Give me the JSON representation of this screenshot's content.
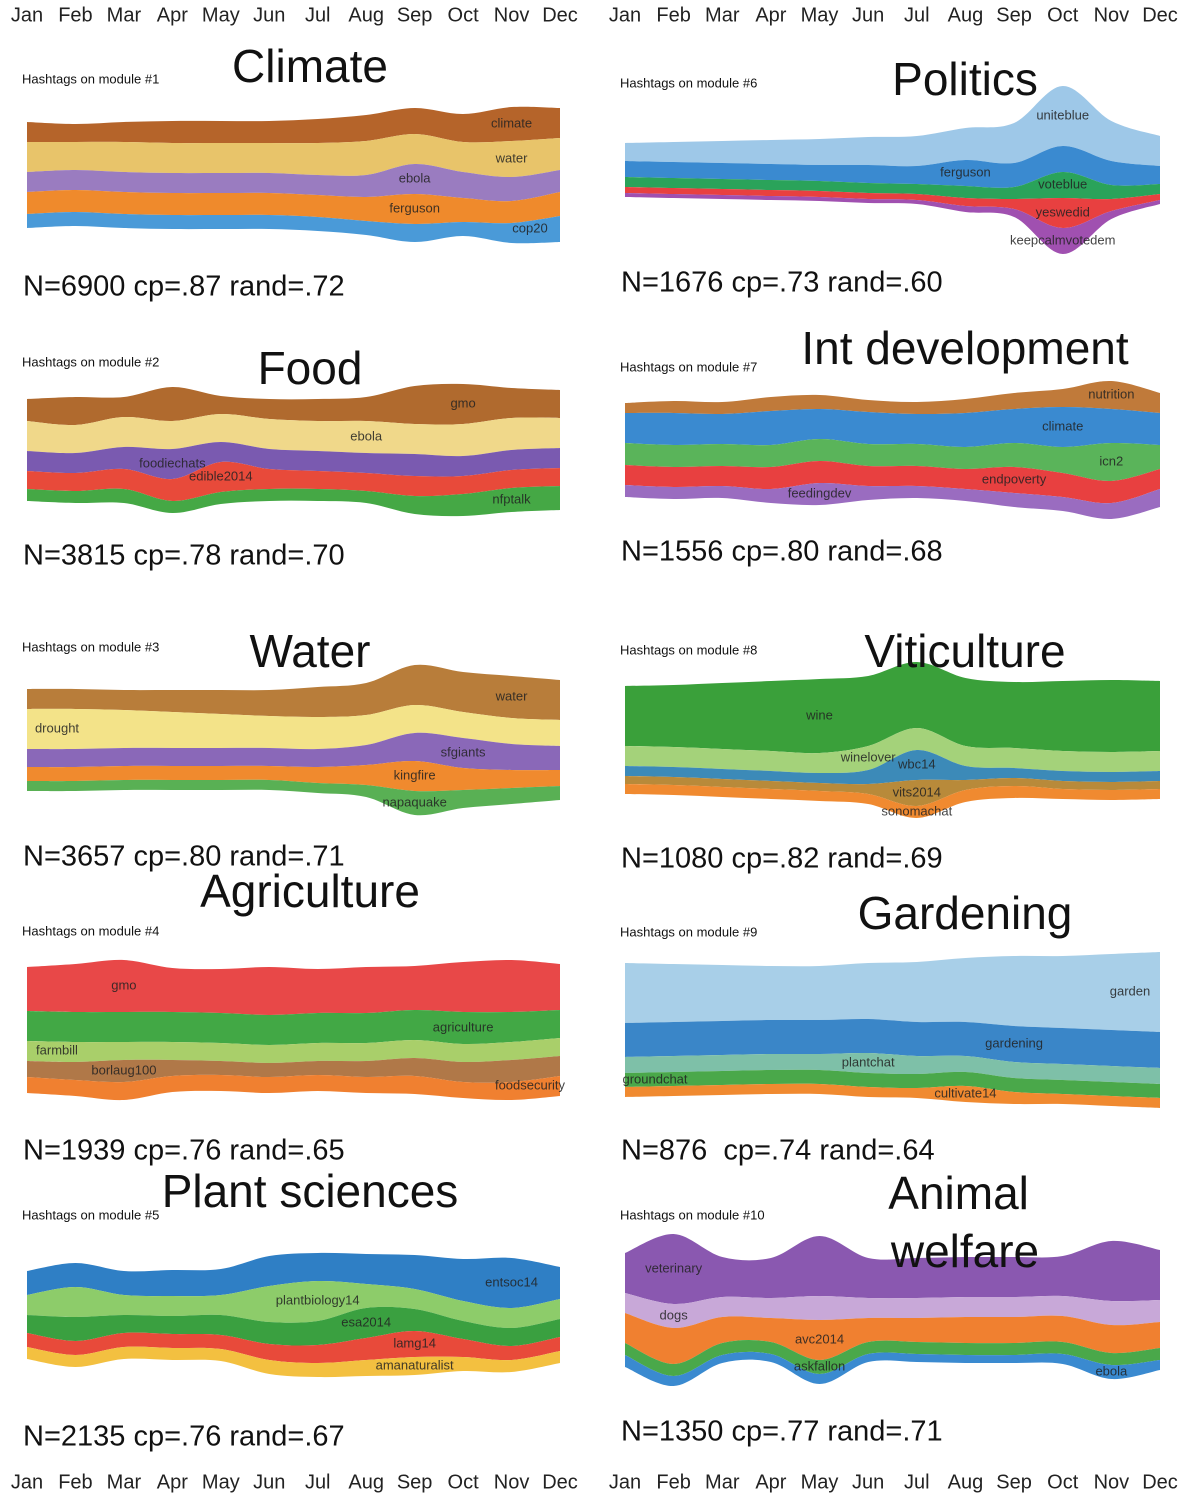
{
  "chart_data": [
    {
      "type": "streamgraph",
      "title": "Climate",
      "subtitle": "Hashtags on module #1",
      "annotation": "N=6900 cp=.87 rand=.72",
      "categories": [
        "Jan",
        "Feb",
        "Mar",
        "Apr",
        "May",
        "Jun",
        "Jul",
        "Aug",
        "Sep",
        "Oct",
        "Nov",
        "Dec"
      ],
      "series": [
        {
          "name": "climate",
          "color": "#b5642a",
          "values": [
            20,
            18,
            20,
            22,
            22,
            22,
            24,
            26,
            26,
            28,
            34,
            30
          ]
        },
        {
          "name": "water",
          "color": "#e8c46a",
          "values": [
            30,
            28,
            30,
            30,
            30,
            30,
            32,
            34,
            30,
            30,
            36,
            32
          ]
        },
        {
          "name": "ebola",
          "color": "#9a7cc0",
          "values": [
            20,
            20,
            20,
            20,
            20,
            20,
            20,
            22,
            30,
            26,
            24,
            22
          ]
        },
        {
          "name": "ferguson",
          "color": "#ef8a2c",
          "values": [
            22,
            22,
            22,
            22,
            22,
            22,
            22,
            24,
            30,
            24,
            22,
            24
          ]
        },
        {
          "name": "cop20",
          "color": "#4a9ad8",
          "values": [
            14,
            14,
            14,
            14,
            14,
            14,
            14,
            14,
            18,
            14,
            20,
            26
          ]
        }
      ]
    },
    {
      "type": "streamgraph",
      "title": "Food",
      "subtitle": "Hashtags on module #2",
      "annotation": "N=3815 cp=.78 rand=.70",
      "series": [
        {
          "name": "gmo",
          "color": "#b06a2e",
          "values": [
            22,
            28,
            20,
            34,
            18,
            20,
            22,
            24,
            38,
            40,
            30,
            28
          ]
        },
        {
          "name": "ebola",
          "color": "#f0d88a",
          "values": [
            30,
            28,
            30,
            28,
            28,
            30,
            30,
            32,
            30,
            32,
            32,
            30
          ]
        },
        {
          "name": "foodiechats",
          "color": "#7a5ab0",
          "values": [
            20,
            20,
            22,
            30,
            20,
            20,
            20,
            20,
            22,
            20,
            20,
            20
          ]
        },
        {
          "name": "edible2014",
          "color": "#e84a3a",
          "values": [
            18,
            18,
            20,
            22,
            30,
            20,
            18,
            18,
            20,
            18,
            18,
            18
          ]
        },
        {
          "name": "nfptalk",
          "color": "#45a845",
          "values": [
            12,
            12,
            14,
            12,
            12,
            12,
            12,
            12,
            18,
            22,
            24,
            24
          ]
        }
      ]
    },
    {
      "type": "streamgraph",
      "title": "Water",
      "subtitle": "Hashtags on module #3",
      "annotation": "N=3657 cp=.80 rand=.71",
      "series": [
        {
          "name": "water",
          "color": "#b87d3a",
          "values": [
            20,
            20,
            20,
            22,
            24,
            26,
            30,
            32,
            40,
            40,
            42,
            40
          ]
        },
        {
          "name": "drought",
          "color": "#f3e389",
          "values": [
            40,
            40,
            38,
            36,
            34,
            32,
            32,
            30,
            28,
            26,
            26,
            26
          ]
        },
        {
          "name": "sfgiants",
          "color": "#8a68b8",
          "values": [
            18,
            18,
            18,
            18,
            18,
            18,
            18,
            20,
            28,
            30,
            26,
            24
          ]
        },
        {
          "name": "kingfire",
          "color": "#f08a2e",
          "values": [
            14,
            14,
            14,
            14,
            14,
            14,
            16,
            20,
            30,
            22,
            18,
            16
          ]
        },
        {
          "name": "napaquake",
          "color": "#59b054",
          "values": [
            10,
            10,
            10,
            10,
            10,
            10,
            10,
            12,
            24,
            18,
            16,
            14
          ]
        }
      ]
    },
    {
      "type": "streamgraph",
      "title": "Agriculture",
      "subtitle": "Hashtags on module #4",
      "annotation": "N=1939 cp=.76 rand=.65",
      "series": [
        {
          "name": "gmo",
          "color": "#e84848",
          "values": [
            44,
            48,
            52,
            44,
            44,
            48,
            44,
            46,
            44,
            50,
            52,
            46
          ]
        },
        {
          "name": "agriculture",
          "color": "#42a845",
          "values": [
            30,
            30,
            30,
            30,
            30,
            30,
            30,
            30,
            30,
            32,
            30,
            28
          ]
        },
        {
          "name": "farmbill",
          "color": "#a9cf6a",
          "values": [
            20,
            20,
            18,
            18,
            18,
            18,
            18,
            18,
            18,
            18,
            18,
            18
          ]
        },
        {
          "name": "borlaug100",
          "color": "#b07848",
          "values": [
            16,
            18,
            22,
            16,
            14,
            14,
            14,
            16,
            18,
            20,
            22,
            20
          ]
        },
        {
          "name": "foodsecurity",
          "color": "#f08030",
          "values": [
            16,
            16,
            18,
            16,
            16,
            16,
            16,
            16,
            18,
            16,
            18,
            20
          ]
        }
      ]
    },
    {
      "type": "streamgraph",
      "title": "Plant sciences",
      "subtitle": "Hashtags on module #5",
      "annotation": "N=2135 cp=.76 rand=.67",
      "categories": [
        "Jan",
        "Feb",
        "Mar",
        "Apr",
        "May",
        "Jun",
        "Jul",
        "Aug",
        "Sep",
        "Oct",
        "Nov",
        "Dec"
      ],
      "series": [
        {
          "name": "entsoc14",
          "color": "#2f7fc5",
          "values": [
            24,
            24,
            24,
            26,
            26,
            30,
            28,
            30,
            34,
            42,
            50,
            32
          ]
        },
        {
          "name": "plantbiology14",
          "color": "#8dcc6a",
          "values": [
            20,
            30,
            20,
            20,
            20,
            36,
            40,
            24,
            20,
            20,
            20,
            20
          ]
        },
        {
          "name": "esa2014",
          "color": "#3aa040",
          "values": [
            18,
            24,
            18,
            18,
            20,
            22,
            24,
            30,
            22,
            18,
            18,
            18
          ]
        },
        {
          "name": "lamg14",
          "color": "#e84a3a",
          "values": [
            14,
            14,
            14,
            14,
            14,
            16,
            18,
            22,
            26,
            18,
            14,
            14
          ]
        },
        {
          "name": "amanaturalist",
          "color": "#f3c040",
          "values": [
            12,
            12,
            12,
            12,
            12,
            14,
            14,
            16,
            18,
            14,
            12,
            12
          ]
        }
      ]
    },
    {
      "type": "streamgraph",
      "title": "Politics",
      "subtitle": "Hashtags on module #6",
      "annotation": "N=1676 cp=.73 rand=.60",
      "categories": [
        "Jan",
        "Feb",
        "Mar",
        "Apr",
        "May",
        "Jun",
        "Jul",
        "Aug",
        "Sep",
        "Oct",
        "Nov",
        "Dec"
      ],
      "series": [
        {
          "name": "uniteblue",
          "color": "#9ec8e8",
          "values": [
            18,
            20,
            22,
            24,
            26,
            28,
            30,
            32,
            40,
            60,
            40,
            30
          ]
        },
        {
          "name": "ferguson",
          "color": "#3a8ad0",
          "values": [
            16,
            16,
            16,
            16,
            16,
            18,
            18,
            26,
            24,
            26,
            24,
            18
          ]
        },
        {
          "name": "voteblue",
          "color": "#2aa35a",
          "values": [
            10,
            10,
            10,
            10,
            10,
            10,
            10,
            12,
            12,
            26,
            14,
            10
          ]
        },
        {
          "name": "yeswedid",
          "color": "#e84040",
          "values": [
            6,
            6,
            6,
            6,
            6,
            6,
            6,
            8,
            10,
            30,
            12,
            6
          ]
        },
        {
          "name": "keepcalmvotedem",
          "color": "#a050b0",
          "values": [
            4,
            4,
            4,
            4,
            4,
            4,
            4,
            6,
            8,
            26,
            8,
            4
          ]
        }
      ]
    },
    {
      "type": "streamgraph",
      "title": "Int development",
      "subtitle": "Hashtags on module #7",
      "annotation": "N=1556 cp=.80 rand=.68",
      "series": [
        {
          "name": "nutrition",
          "color": "#c07a3a",
          "values": [
            10,
            12,
            12,
            14,
            14,
            12,
            12,
            14,
            16,
            18,
            28,
            20
          ]
        },
        {
          "name": "climate",
          "color": "#3a8ad0",
          "values": [
            30,
            32,
            30,
            34,
            30,
            32,
            30,
            34,
            34,
            40,
            34,
            32
          ]
        },
        {
          "name": "icn2",
          "color": "#5ab45a",
          "values": [
            22,
            22,
            22,
            22,
            22,
            22,
            22,
            22,
            24,
            26,
            38,
            24
          ]
        },
        {
          "name": "endpoverty",
          "color": "#e84040",
          "values": [
            20,
            20,
            20,
            22,
            22,
            20,
            20,
            20,
            26,
            24,
            22,
            20
          ]
        },
        {
          "name": "feedingdev",
          "color": "#9a6cc0",
          "values": [
            12,
            12,
            12,
            14,
            22,
            14,
            12,
            12,
            14,
            14,
            16,
            18
          ]
        }
      ]
    },
    {
      "type": "streamgraph",
      "title": "Viticulture",
      "subtitle": "Hashtags on module #8",
      "annotation": "N=1080 cp=.82 rand=.69",
      "series": [
        {
          "name": "wine",
          "color": "#3aa03a",
          "values": [
            60,
            62,
            66,
            70,
            74,
            70,
            66,
            68,
            66,
            70,
            72,
            70
          ]
        },
        {
          "name": "winelover",
          "color": "#a4d27a",
          "values": [
            20,
            20,
            20,
            20,
            20,
            24,
            22,
            20,
            20,
            20,
            20,
            20
          ]
        },
        {
          "name": "wbc14",
          "color": "#3c8ab8",
          "values": [
            10,
            10,
            10,
            10,
            10,
            14,
            30,
            14,
            10,
            10,
            10,
            10
          ]
        },
        {
          "name": "vits2014",
          "color": "#b88a3a",
          "values": [
            8,
            8,
            8,
            8,
            8,
            10,
            26,
            10,
            8,
            8,
            8,
            8
          ]
        },
        {
          "name": "sonomachat",
          "color": "#f08a30",
          "values": [
            10,
            10,
            10,
            10,
            10,
            10,
            12,
            12,
            12,
            10,
            10,
            10
          ]
        }
      ]
    },
    {
      "type": "streamgraph",
      "title": "Gardening",
      "subtitle": "Hashtags on module #9",
      "annotation": "N=876  cp=.74 rand=.64",
      "series": [
        {
          "name": "garden",
          "color": "#a8cfe8",
          "values": [
            60,
            58,
            56,
            54,
            54,
            56,
            60,
            64,
            70,
            72,
            76,
            80
          ]
        },
        {
          "name": "gardening",
          "color": "#3a86c8",
          "values": [
            34,
            34,
            34,
            34,
            34,
            34,
            34,
            34,
            36,
            36,
            36,
            36
          ]
        },
        {
          "name": "plantchat",
          "color": "#7ec0a8",
          "values": [
            16,
            16,
            16,
            16,
            16,
            20,
            18,
            16,
            16,
            16,
            16,
            16
          ]
        },
        {
          "name": "groundchat",
          "color": "#4aa84a",
          "values": [
            14,
            14,
            14,
            14,
            14,
            14,
            14,
            14,
            14,
            14,
            14,
            14
          ]
        },
        {
          "name": "cultivate14",
          "color": "#f08a30",
          "values": [
            10,
            10,
            10,
            10,
            10,
            10,
            10,
            16,
            12,
            10,
            10,
            10
          ]
        }
      ]
    },
    {
      "type": "streamgraph",
      "title": "Animal welfare",
      "subtitle": "Hashtags on module #10",
      "annotation": "N=1350 cp=.77 rand=.71",
      "categories": [
        "Jan",
        "Feb",
        "Mar",
        "Apr",
        "May",
        "Jun",
        "Jul",
        "Aug",
        "Sep",
        "Oct",
        "Nov",
        "Dec"
      ],
      "series": [
        {
          "name": "veterinary",
          "color": "#8a58b0",
          "values": [
            40,
            70,
            40,
            40,
            60,
            40,
            40,
            40,
            40,
            40,
            60,
            50
          ]
        },
        {
          "name": "dogs",
          "color": "#c8a8d8",
          "values": [
            20,
            24,
            20,
            20,
            24,
            20,
            20,
            20,
            20,
            20,
            24,
            22
          ]
        },
        {
          "name": "avc2014",
          "color": "#f08030",
          "values": [
            30,
            36,
            26,
            24,
            40,
            24,
            24,
            26,
            26,
            26,
            28,
            26
          ]
        },
        {
          "name": "askfallon",
          "color": "#4aa84a",
          "values": [
            12,
            12,
            12,
            12,
            14,
            12,
            12,
            12,
            12,
            12,
            12,
            12
          ]
        },
        {
          "name": "ebola",
          "color": "#3a8ad0",
          "values": [
            12,
            10,
            8,
            8,
            10,
            8,
            8,
            8,
            8,
            10,
            14,
            10
          ]
        }
      ]
    }
  ]
}
